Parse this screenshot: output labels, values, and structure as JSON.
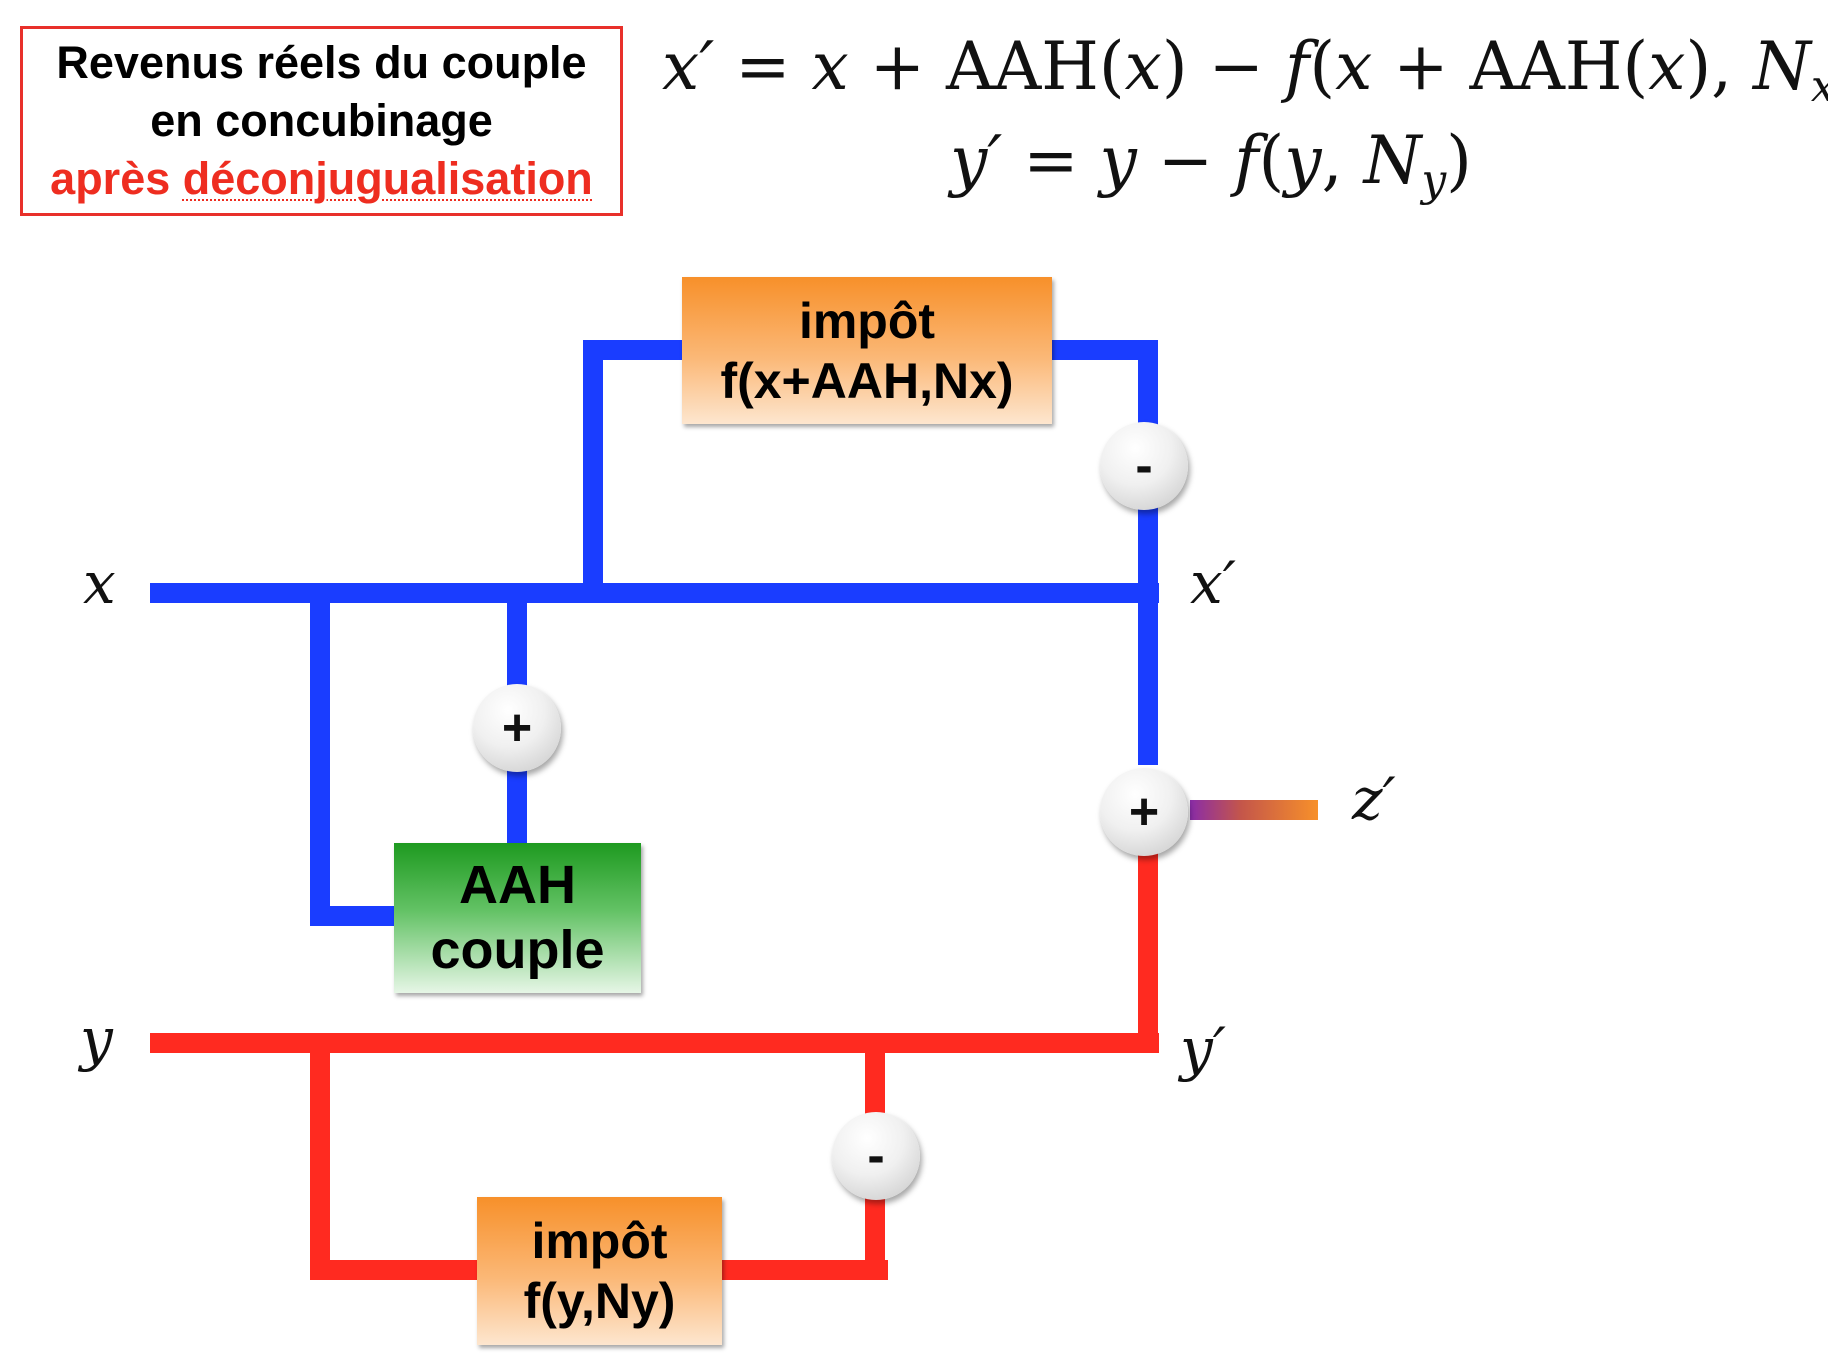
{
  "title": {
    "line1": "Revenus réels du couple",
    "line2": "en concubinage",
    "line3_prefix": "après ",
    "line3_word": "déconjugualisation"
  },
  "formulas": {
    "x_prime": {
      "lhs": "x′",
      "eq": " = ",
      "x1": "x",
      "plus1": " + AAH(",
      "x2": "x",
      "mid": ") − ",
      "f": "f",
      "open": "(",
      "x3": "x",
      "plus2": " + AAH(",
      "x4": "x",
      "close": "), ",
      "N": "N",
      "sub": "x",
      "end": ")"
    },
    "y_prime": {
      "lhs": "y′",
      "eq": " = ",
      "y1": "y",
      "minus": " − ",
      "f": "f",
      "open": "(",
      "y2": "y",
      "comma": ", ",
      "N": "N",
      "sub": "y",
      "end": ")"
    }
  },
  "blocks": {
    "impot_x": {
      "line1": "impôt",
      "line2": "f(x+AAH,Nx)"
    },
    "aah": {
      "line1": "AAH",
      "line2": "couple"
    },
    "impot_y": {
      "line1": "impôt",
      "line2": "f(y,Ny)"
    }
  },
  "nodes": {
    "minus_x": "-",
    "plus_aah": "+",
    "plus_z": "+",
    "minus_y": "-"
  },
  "labels": {
    "x": "x",
    "x_prime": "x′",
    "y": "y",
    "y_prime": "y′",
    "z_prime": "z′"
  },
  "colors": {
    "x_wire": "#1a3dff",
    "y_wire": "#ff2a20",
    "title_border": "#e8302a",
    "impot_block": "#f7902a",
    "aah_block": "#1e9a20"
  }
}
